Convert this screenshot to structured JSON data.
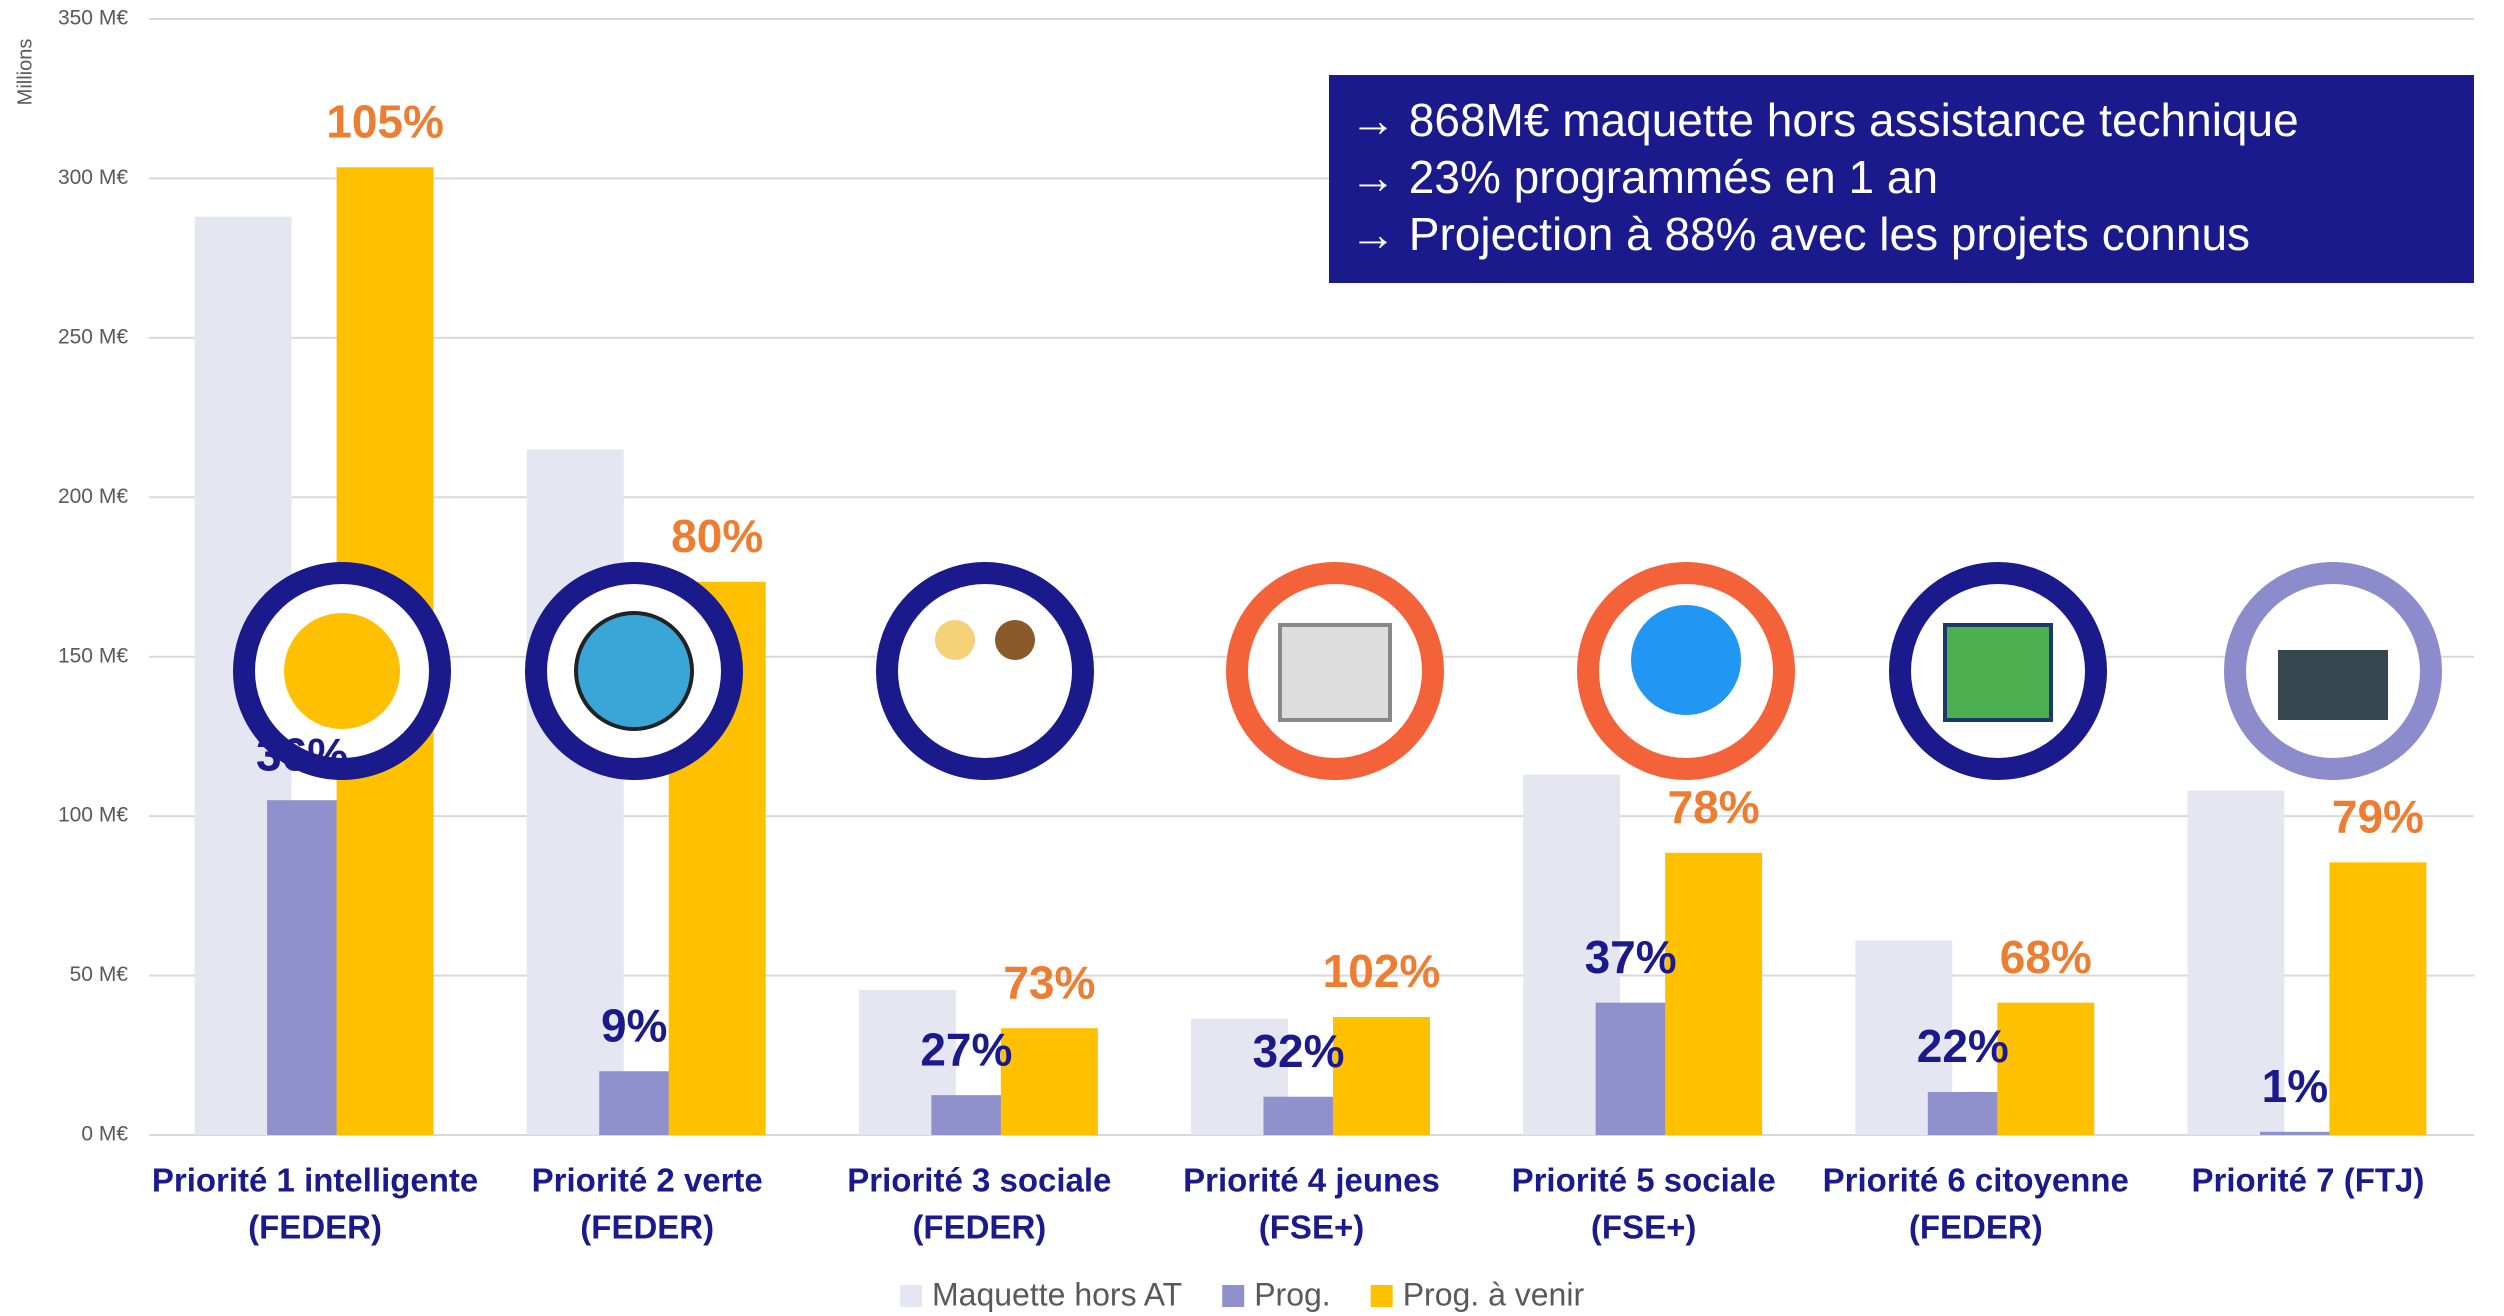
{
  "chart_data": {
    "type": "bar",
    "y_label": "Millions",
    "categories": [
      [
        "Priorité 1 intelligente",
        "(FEDER)"
      ],
      [
        "Priorité 2 verte",
        "(FEDER)"
      ],
      [
        "Priorité 3 sociale",
        "(FEDER)"
      ],
      [
        "Priorité 4 jeunes",
        "(FSE+)"
      ],
      [
        "Priorité 5 sociale",
        "(FSE+)"
      ],
      [
        "Priorité 6 citoyenne",
        "(FEDER)"
      ],
      [
        "Priorité 7 (FTJ)"
      ]
    ],
    "series": [
      {
        "name": "Maquette hors AT",
        "color": "#e6e6f2",
        "values": [
          288,
          215,
          45.5,
          36.5,
          113,
          61,
          108
        ]
      },
      {
        "name": "Prog.",
        "color": "#9090cc",
        "values": [
          105,
          20,
          12.5,
          12,
          41.5,
          13.5,
          1
        ],
        "label_color": "#1a1a8c",
        "percent_labels": [
          "36%",
          "9%",
          "27%",
          "32%",
          "37%",
          "22%",
          "1%"
        ]
      },
      {
        "name": "Prog. à venir",
        "color": "#ffc000",
        "values": [
          303.5,
          173.5,
          33.5,
          37,
          88.5,
          41.5,
          85.5
        ],
        "label_color": "#ed7d31",
        "percent_labels": [
          "105%",
          "80%",
          "73%",
          "102%",
          "78%",
          "68%",
          "79%"
        ]
      }
    ],
    "ylim": [
      0,
      350
    ],
    "yticks": [
      {
        "value": 0,
        "label": "0  M€"
      },
      {
        "value": 50,
        "label": "50  M€"
      },
      {
        "value": 100,
        "label": "100  M€"
      },
      {
        "value": 150,
        "label": "150  M€"
      },
      {
        "value": 200,
        "label": "200  M€"
      },
      {
        "value": 250,
        "label": "250  M€"
      },
      {
        "value": 300,
        "label": "300  M€"
      },
      {
        "value": 350,
        "label": "350  M€"
      }
    ],
    "grid": true,
    "legend": "bottom",
    "annotation_lines": [
      "→ 868M€ maquette hors assistance technique",
      "→ 23% programmés en 1 an",
      "→ Projection à 88% avec les projets connus"
    ]
  }
}
